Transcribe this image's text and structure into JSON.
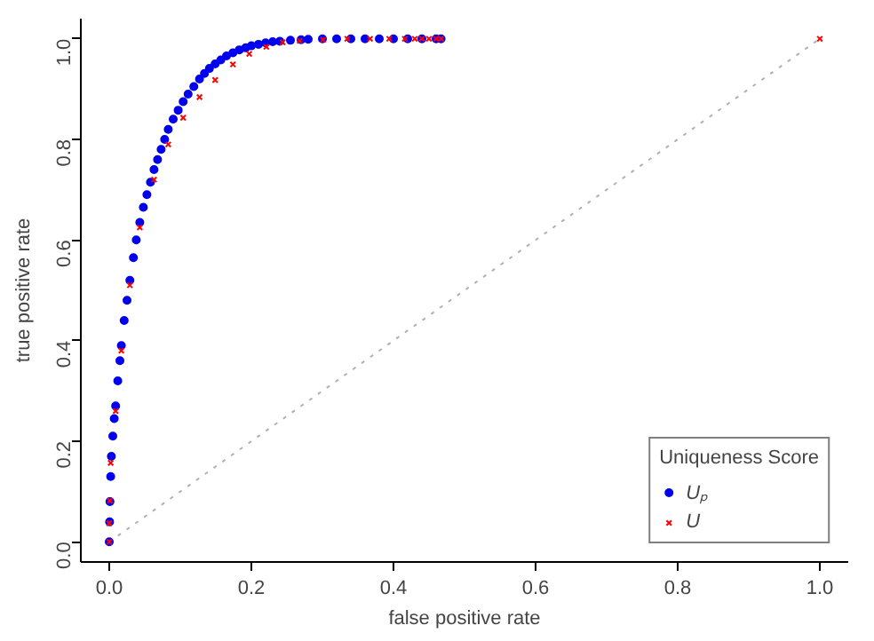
{
  "chart_data": {
    "type": "scatter",
    "xlabel": "false positive rate",
    "ylabel": "true positive rate",
    "legend_title": "Uniqueness Score",
    "legend": "bottom right",
    "xlim": [
      -0.04,
      1.04
    ],
    "ylim": [
      -0.04,
      1.04
    ],
    "xticks": [
      {
        "value": 0,
        "label": "0.0"
      },
      0.2,
      0.4,
      0.6,
      0.8,
      {
        "value": 1,
        "label": "1.0"
      }
    ],
    "yticks": [
      {
        "value": 0,
        "label": "0.0"
      },
      0.2,
      0.4,
      0.6,
      0.8,
      {
        "value": 1,
        "label": "1.0"
      }
    ],
    "grid": false,
    "series": [
      {
        "type": "line",
        "color": "#b0b0b0",
        "line_style": "dotted",
        "x": [
          0,
          1
        ],
        "values": [
          0,
          1
        ]
      },
      {
        "name": "Uₚ",
        "marker": "circle",
        "color": "#0000ee",
        "x": [
          0,
          0.0005,
          0.001,
          0.002,
          0.003,
          0.005,
          0.007,
          0.009,
          0.012,
          0.015,
          0.017,
          0.021,
          0.025,
          0.029,
          0.034,
          0.038,
          0.043,
          0.048,
          0.053,
          0.058,
          0.063,
          0.068,
          0.073,
          0.078,
          0.083,
          0.09,
          0.097,
          0.104,
          0.111,
          0.119,
          0.127,
          0.134,
          0.141,
          0.149,
          0.157,
          0.165,
          0.174,
          0.183,
          0.192,
          0.2,
          0.21,
          0.22,
          0.23,
          0.24,
          0.255,
          0.27,
          0.28,
          0.3,
          0.32,
          0.34,
          0.36,
          0.38,
          0.4,
          0.42,
          0.44,
          0.46,
          0.467
        ],
        "values": [
          0,
          0.04,
          0.08,
          0.13,
          0.17,
          0.21,
          0.245,
          0.27,
          0.32,
          0.36,
          0.39,
          0.44,
          0.48,
          0.52,
          0.565,
          0.6,
          0.635,
          0.665,
          0.69,
          0.715,
          0.74,
          0.76,
          0.78,
          0.8,
          0.82,
          0.84,
          0.858,
          0.875,
          0.89,
          0.905,
          0.92,
          0.931,
          0.941,
          0.95,
          0.958,
          0.966,
          0.972,
          0.978,
          0.982,
          0.986,
          0.989,
          0.992,
          0.994,
          0.995,
          0.997,
          0.998,
          0.999,
          1,
          1,
          1,
          1,
          1,
          1,
          1,
          1,
          1,
          1
        ]
      },
      {
        "name": "U",
        "marker": "cross",
        "color": "#ff0000",
        "x": [
          0,
          0,
          0.001,
          0.002,
          0.009,
          0.017,
          0.029,
          0.043,
          0.063,
          0.083,
          0.104,
          0.127,
          0.149,
          0.174,
          0.197,
          0.221,
          0.244,
          0.268,
          0.301,
          0.335,
          0.367,
          0.394,
          0.416,
          0.43,
          0.44,
          0.45,
          0.46,
          0.467,
          1
        ],
        "values": [
          0,
          0.037,
          0.082,
          0.157,
          0.26,
          0.38,
          0.51,
          0.625,
          0.72,
          0.79,
          0.843,
          0.884,
          0.918,
          0.949,
          0.97,
          0.984,
          0.993,
          0.996,
          0.998,
          1,
          1,
          1,
          1,
          1,
          1,
          1,
          1,
          1,
          1
        ]
      }
    ]
  }
}
